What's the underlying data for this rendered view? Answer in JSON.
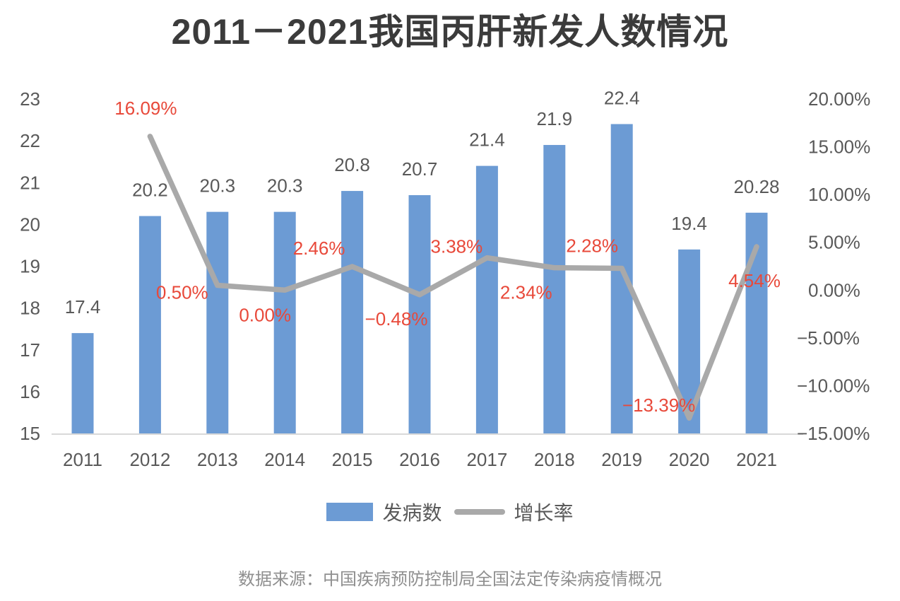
{
  "title": "2011－2021我国丙肝新发人数情况",
  "source": "数据来源：中国疾病预防控制局全国法定传染病疫情概况",
  "legend": {
    "bars": "发病数",
    "line": "增长率"
  },
  "colors": {
    "bar": "#6c9bd4",
    "line": "#a9a9a9",
    "bar_value_label": "#595959",
    "growth_label": "#e8493a",
    "axis_text": "#595959",
    "axis_line": "#d9d9d9",
    "title_text": "#3b3b3b",
    "source_text": "#8f8f8f"
  },
  "chart_data": {
    "type": "bar",
    "subtype": "bar+line combo, dual axis",
    "title": "2011－2021我国丙肝新发人数情况",
    "categories": [
      "2011",
      "2012",
      "2013",
      "2014",
      "2015",
      "2016",
      "2017",
      "2018",
      "2019",
      "2020",
      "2021"
    ],
    "series": [
      {
        "name": "发病数",
        "type": "bar",
        "axis": "left",
        "values": [
          17.4,
          20.2,
          20.3,
          20.3,
          20.8,
          20.7,
          21.4,
          21.9,
          22.4,
          19.4,
          20.28
        ],
        "labels": [
          "17.4",
          "20.2",
          "20.3",
          "20.3",
          "20.8",
          "20.7",
          "21.4",
          "21.9",
          "22.4",
          "19.4",
          "20.28"
        ]
      },
      {
        "name": "增长率",
        "type": "line",
        "axis": "right",
        "values": [
          null,
          16.09,
          0.5,
          0.0,
          2.46,
          -0.48,
          3.38,
          2.34,
          2.28,
          -13.39,
          4.54
        ],
        "labels": [
          null,
          "16.09%",
          "0.50%",
          "0.00%",
          "2.46%",
          "−0.48%",
          "3.38%",
          "2.34%",
          "2.28%",
          "−13.39%",
          "4.54%"
        ]
      }
    ],
    "left_axis": {
      "min": 15,
      "max": 23,
      "ticks": [
        "23",
        "22",
        "21",
        "20",
        "19",
        "18",
        "17",
        "16",
        "15"
      ],
      "tick_values": [
        23,
        22,
        21,
        20,
        19,
        18,
        17,
        16,
        15
      ]
    },
    "right_axis": {
      "min": -15,
      "max": 20,
      "ticks": [
        "20.00%",
        "15.00%",
        "10.00%",
        "5.00%",
        "0.00%",
        "−5.00%",
        "−10.00%",
        "−15.00%"
      ],
      "tick_values": [
        20,
        15,
        10,
        5,
        0,
        -5,
        -10,
        -15
      ]
    },
    "grid": false,
    "legend_position": "bottom",
    "growth_label_offsets": [
      null,
      [
        -6,
        -40
      ],
      [
        -50,
        10
      ],
      [
        -28,
        35
      ],
      [
        -47,
        -26
      ],
      [
        -33,
        34
      ],
      [
        -43,
        -16
      ],
      [
        -40,
        35
      ],
      [
        -42,
        -32
      ],
      [
        -43,
        -18
      ],
      [
        -3,
        48
      ]
    ]
  }
}
